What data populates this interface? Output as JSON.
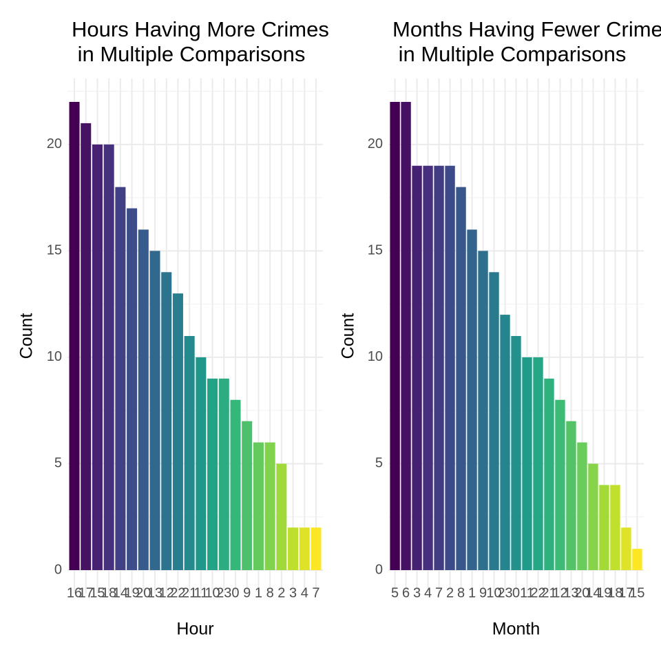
{
  "chart_data": [
    {
      "type": "bar",
      "title": [
        "Hours Having More Crimes",
        " in Multiple Comparisons"
      ],
      "x_label": "Hour",
      "y_label": "Count",
      "categories": [
        "16",
        "17",
        "15",
        "18",
        "14",
        "19",
        "20",
        "13",
        "12",
        "22",
        "21",
        "11",
        "10",
        "23",
        "0",
        "9",
        "1",
        "8",
        "2",
        "3",
        "4",
        "7"
      ],
      "values": [
        22,
        21,
        20,
        20,
        18,
        17,
        16,
        15,
        14,
        13,
        11,
        10,
        9,
        9,
        8,
        7,
        6,
        6,
        5,
        2,
        2,
        2
      ],
      "colormap": "viridis",
      "ylim": [
        -1.1,
        23.1
      ],
      "yticks": [
        0,
        5,
        10,
        15,
        20
      ],
      "grid": true
    },
    {
      "type": "bar",
      "title": [
        "Months Having Fewer Crimes",
        " in Multiple Comparisons"
      ],
      "x_label": "Month",
      "y_label": "Count",
      "categories": [
        "5",
        "6",
        "3",
        "4",
        "7",
        "2",
        "8",
        "1",
        "9",
        "10",
        "23",
        "0",
        "11",
        "22",
        "21",
        "12",
        "13",
        "20",
        "14",
        "19",
        "18",
        "17",
        "15"
      ],
      "values": [
        22,
        22,
        19,
        19,
        19,
        19,
        18,
        16,
        15,
        14,
        12,
        11,
        10,
        10,
        9,
        8,
        7,
        6,
        5,
        4,
        4,
        2,
        1
      ],
      "colormap": "viridis",
      "ylim": [
        -1.1,
        23.1
      ],
      "yticks": [
        0,
        5,
        10,
        15,
        20
      ],
      "grid": true
    }
  ]
}
